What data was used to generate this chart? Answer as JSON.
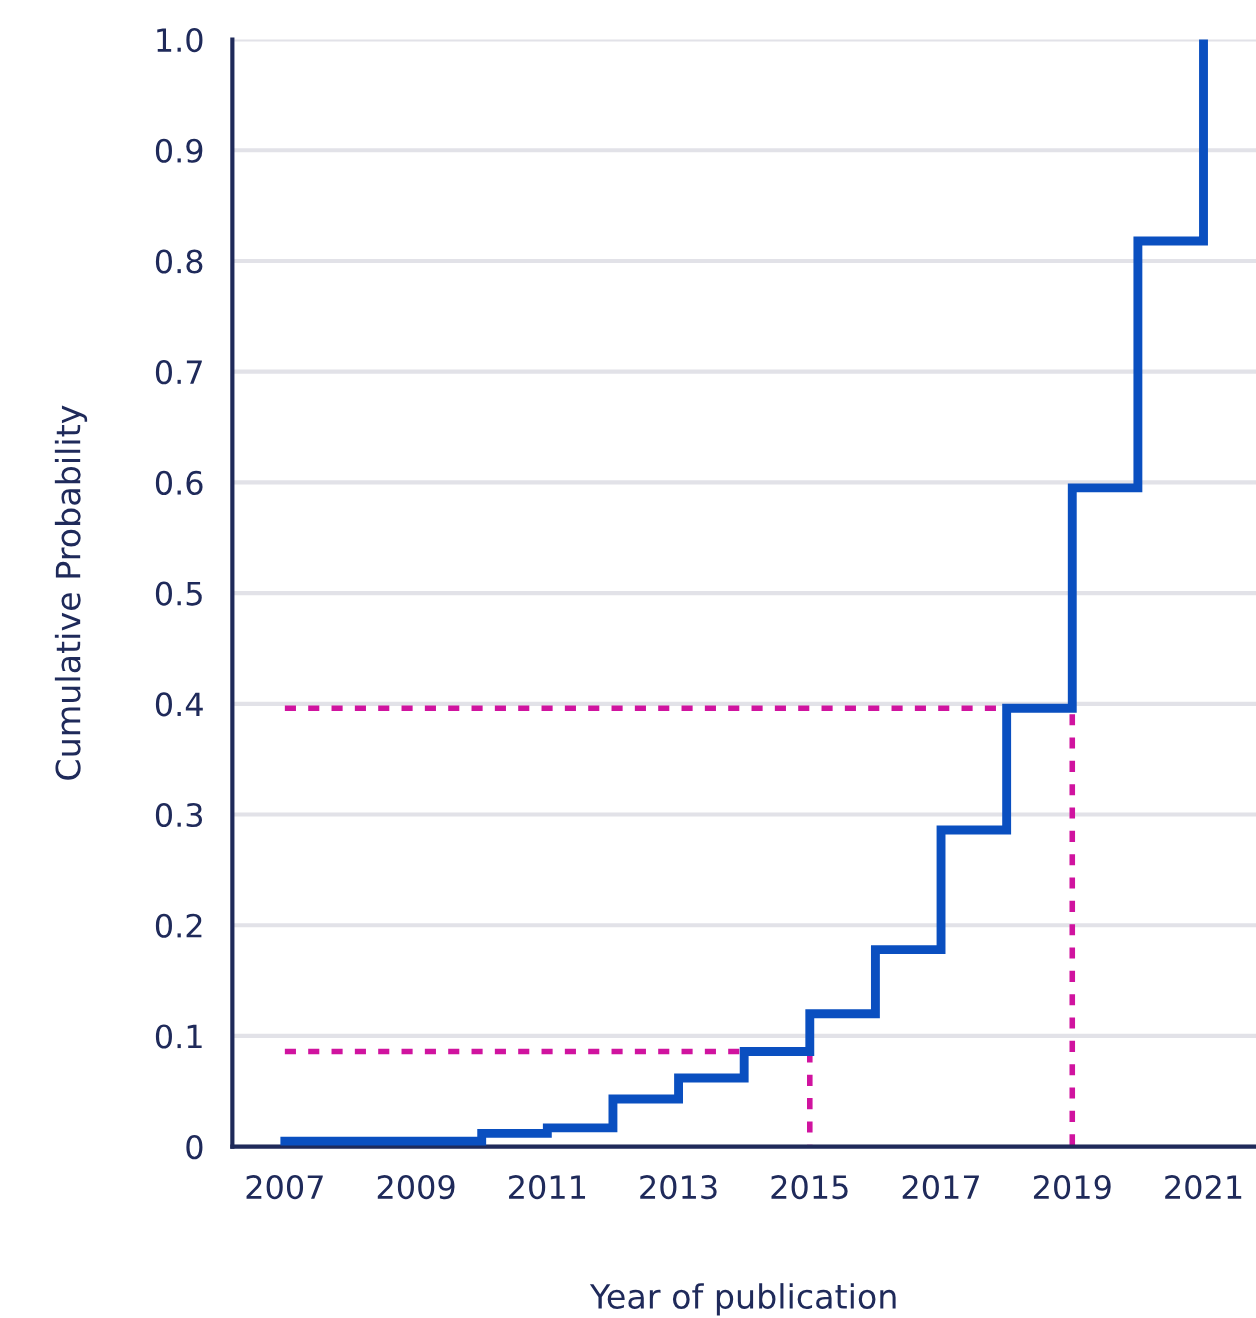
{
  "chart_data": {
    "type": "step",
    "xlabel": "Year of publication",
    "ylabel": "Cumulative Probability",
    "xlim": [
      2006.2,
      2021.8
    ],
    "ylim": [
      0,
      1.0
    ],
    "xticks": [
      2007,
      2009,
      2011,
      2013,
      2015,
      2017,
      2019,
      2021
    ],
    "yticks": [
      0,
      0.1,
      0.2,
      0.3,
      0.4,
      0.5,
      0.6,
      0.7,
      0.8,
      0.9,
      {
        "value": 1.0,
        "label": "1.0"
      }
    ],
    "grid": "y",
    "legend": false,
    "series": [
      {
        "color": "#0a4fc0",
        "line_style": "solid",
        "x": [
          2007,
          2010,
          2011,
          2012,
          2013,
          2014,
          2015,
          2016,
          2017,
          2018,
          2019,
          2020,
          2021
        ],
        "values": [
          0.005,
          0.012,
          0.017,
          0.043,
          0.062,
          0.086,
          0.12,
          0.178,
          0.286,
          0.396,
          0.595,
          0.818,
          1.0
        ]
      },
      {
        "type": "line",
        "color": "#d0139f",
        "line_style": "dotted",
        "x": [
          2007,
          2014
        ],
        "values": [
          0.086,
          0.086
        ]
      },
      {
        "type": "line",
        "color": "#d0139f",
        "line_style": "dotted",
        "x": [
          2015,
          2015
        ],
        "values": [
          0.086,
          0
        ]
      },
      {
        "type": "line",
        "color": "#d0139f",
        "line_style": "dotted",
        "x": [
          2007,
          2019,
          2019
        ],
        "values": [
          0.396,
          0.396,
          0
        ]
      }
    ]
  }
}
